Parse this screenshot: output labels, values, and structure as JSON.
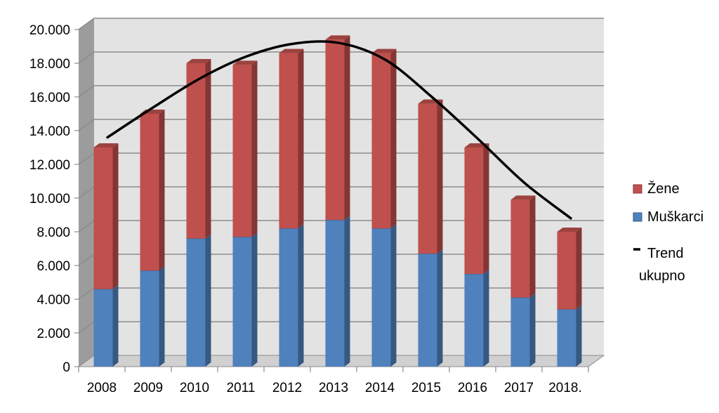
{
  "chart_data": {
    "type": "bar",
    "stacked": true,
    "three_d": true,
    "categories": [
      "2008",
      "2009",
      "2010",
      "2011",
      "2012",
      "2013",
      "2014",
      "2015",
      "2016",
      "2017",
      "2018."
    ],
    "series": [
      {
        "name": "Muškarci",
        "color": "#4f81bd",
        "values": [
          4600,
          5700,
          7600,
          7700,
          8200,
          8700,
          8200,
          6700,
          5500,
          4100,
          3400
        ]
      },
      {
        "name": "Žene",
        "color": "#c0504d",
        "values": [
          8400,
          9300,
          10400,
          10200,
          10400,
          10700,
          10400,
          8900,
          7500,
          5800,
          4600
        ]
      }
    ],
    "trend": {
      "name": "Trend ukupno",
      "name_lines": [
        "Trend",
        "ukupno"
      ],
      "color": "#000000",
      "type": "polynomial",
      "values": [
        13600,
        15400,
        17100,
        18400,
        19150,
        19200,
        18200,
        16000,
        13500,
        10900,
        8800
      ]
    },
    "yticks": [
      "0",
      "2.000",
      "4.000",
      "6.000",
      "8.000",
      "10.000",
      "12.000",
      "14.000",
      "16.000",
      "18.000",
      "20.000"
    ],
    "ylim": [
      0,
      20000
    ],
    "grid": true,
    "legend_position": "right",
    "title": "",
    "xlabel": "",
    "ylabel": ""
  }
}
